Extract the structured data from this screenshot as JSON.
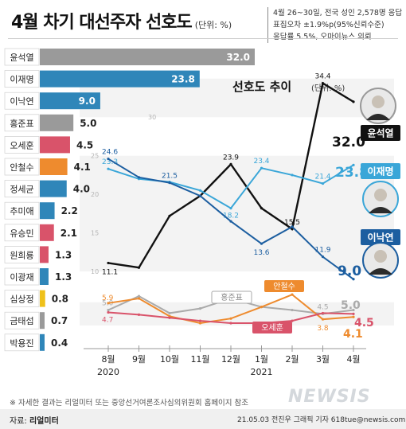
{
  "header": {
    "title": "4월 차기 대선주자 선호도",
    "unit": "(단위: %)"
  },
  "survey_info": [
    "4월 26~30일, 전국 성인 2,578명 응답",
    "표집오차 ±1.9%p(95%신뢰수준)",
    "응답률 5.5%, 오마이뉴스 의뢰"
  ],
  "footer": {
    "note": "※ 자세한 결과는 리얼미터 또는 중앙선거여론조사심의위원회 홈페이지 참조",
    "source_label": "자료:",
    "source_name": "리얼미터",
    "credit": "21.05.03 전진우 그래픽 기자 618tue@newsis.com",
    "watermark": "NEWSIS"
  },
  "chart_data": [
    {
      "type": "bar",
      "orientation": "horizontal",
      "categories": [
        "윤석열",
        "이재명",
        "이낙연",
        "홍준표",
        "오세훈",
        "안철수",
        "정세균",
        "추미애",
        "유승민",
        "원희룡",
        "이광재",
        "심상정",
        "금태섭",
        "박용진"
      ],
      "values": [
        32.0,
        23.8,
        9.0,
        5.0,
        4.5,
        4.1,
        4.0,
        2.2,
        2.1,
        1.3,
        1.3,
        0.8,
        0.7,
        0.4
      ],
      "value_labels": [
        "32.0",
        "23.8",
        "9.0",
        "5.0",
        "4.5",
        "4.1",
        "4.0",
        "2.2",
        "2.1",
        "1.3",
        "1.3",
        "0.8",
        "0.7",
        "0.4"
      ],
      "colors": [
        "#9a9a9a",
        "#2f86b9",
        "#2f86b9",
        "#9a9a9a",
        "#d9536a",
        "#ee8b2e",
        "#2f86b9",
        "#2f86b9",
        "#d9536a",
        "#d9536a",
        "#2f86b9",
        "#efc11a",
        "#9a9a9a",
        "#2f86b9"
      ]
    },
    {
      "type": "line",
      "title": "선호도 추이",
      "unit": "(단위: %)",
      "x": [
        "8월",
        "9월",
        "10월",
        "11월",
        "12월",
        "1월",
        "2월",
        "3월",
        "4월"
      ],
      "year_labels": [
        {
          "index": 0,
          "label": "2020"
        },
        {
          "index": 5,
          "label": "2021"
        }
      ],
      "y_ticks": [
        10,
        15,
        20,
        25,
        30,
        35
      ],
      "ylim": [
        0,
        39
      ],
      "series": [
        {
          "name": "윤석열",
          "color": "#111111",
          "values": [
            11.1,
            10.5,
            17.2,
            19.8,
            23.9,
            18.2,
            15.5,
            34.4,
            32.0
          ],
          "labels": {
            "0": "11.1",
            "4": "23.9",
            "6": "15.5",
            "7": "34.4"
          },
          "end_label": "32.0"
        },
        {
          "name": "이재명",
          "color": "#3aa6d8",
          "values": [
            23.3,
            22.0,
            21.6,
            20.5,
            18.2,
            23.4,
            22.5,
            21.4,
            23.8
          ],
          "labels": {
            "0": "23.3",
            "4": "18.2",
            "5": "23.4",
            "7": "21.4"
          },
          "end_label": "23.8"
        },
        {
          "name": "이낙연",
          "color": "#1c5ea0",
          "values": [
            24.6,
            22.2,
            21.5,
            19.8,
            16.5,
            13.6,
            15.8,
            11.9,
            9.0
          ],
          "labels": {
            "0": "24.6",
            "2": "21.5",
            "5": "13.6",
            "7": "11.9"
          },
          "end_label": "9.0"
        },
        {
          "name": "홍준표",
          "color": "#aaaaaa",
          "values": [
            5.0,
            6.8,
            4.6,
            5.2,
            6.5,
            5.4,
            5.0,
            4.5,
            5.0
          ],
          "labels": {
            "0": "5.0",
            "7": "4.5"
          },
          "end_label": "5.0"
        },
        {
          "name": "안철수",
          "color": "#ee8b2e",
          "values": [
            5.9,
            6.5,
            4.2,
            3.3,
            3.9,
            5.4,
            7.0,
            3.8,
            4.1
          ],
          "labels": {
            "0": "5.9",
            "7": "3.8"
          },
          "end_label": "4.1"
        },
        {
          "name": "오세훈",
          "color": "#d9536a",
          "values": [
            4.7,
            4.4,
            4.0,
            3.6,
            3.3,
            3.3,
            3.6,
            4.6,
            4.5
          ],
          "labels": {
            "0": "4.7"
          },
          "end_label": "4.5"
        }
      ]
    }
  ]
}
